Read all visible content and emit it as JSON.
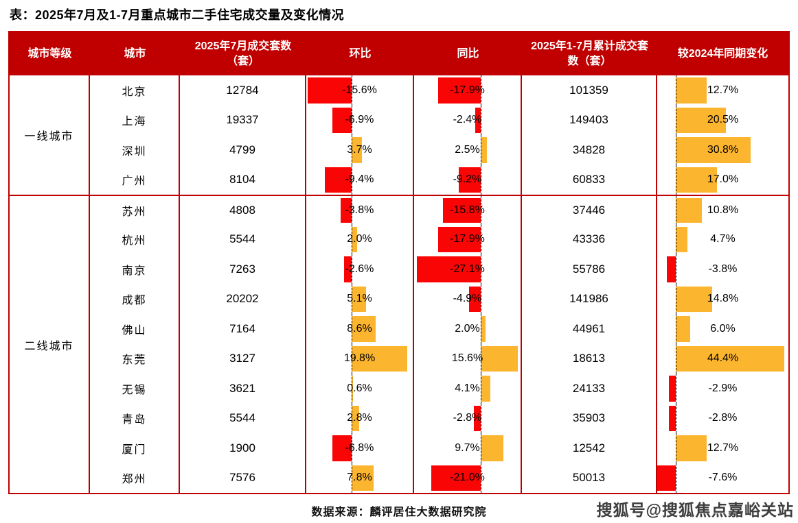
{
  "title": "表：2025年7月及1-7月重点城市二手住宅成交量及变化情况",
  "source": "数据来源：麟评居住大数据研究院",
  "watermark": "搜狐号@搜狐焦点嘉峪关站",
  "colors": {
    "header_bg": "#C00000",
    "table_border": "#C00000",
    "negative_bar": "#FA0505",
    "positive_bar": "#FCB52E",
    "header_text": "#FFFFFF",
    "body_text": "#000000"
  },
  "chart_data": {
    "type": "table",
    "title": "2025年7月及1-7月重点城市二手住宅成交量及变化情况",
    "columns": [
      "城市等级",
      "城市",
      "2025年7月成交套数（套）",
      "环比",
      "同比",
      "2025年1-7月累计成交套数（套）",
      "较2024年同期变化"
    ],
    "bar_columns": [
      "环比",
      "同比",
      "较2024年同期变化"
    ],
    "groups": [
      {
        "tier": "一线城市",
        "rows": [
          {
            "city": "北京",
            "jul": "12784",
            "mom": "-15.6%",
            "yoy": "-17.9%",
            "cum": "101359",
            "vs": "12.7%"
          },
          {
            "city": "上海",
            "jul": "19337",
            "mom": "-6.9%",
            "yoy": "-2.4%",
            "cum": "149403",
            "vs": "20.5%"
          },
          {
            "city": "深圳",
            "jul": "4799",
            "mom": "3.7%",
            "yoy": "2.5%",
            "cum": "34828",
            "vs": "30.8%"
          },
          {
            "city": "广州",
            "jul": "8104",
            "mom": "-9.4%",
            "yoy": "-9.2%",
            "cum": "60833",
            "vs": "17.0%"
          }
        ]
      },
      {
        "tier": "二线城市",
        "rows": [
          {
            "city": "苏州",
            "jul": "4808",
            "mom": "-3.8%",
            "yoy": "-15.8%",
            "cum": "37446",
            "vs": "10.8%"
          },
          {
            "city": "杭州",
            "jul": "5544",
            "mom": "2.0%",
            "yoy": "-17.9%",
            "cum": "43336",
            "vs": "4.7%"
          },
          {
            "city": "南京",
            "jul": "7263",
            "mom": "-2.6%",
            "yoy": "-27.1%",
            "cum": "55786",
            "vs": "-3.8%"
          },
          {
            "city": "成都",
            "jul": "20202",
            "mom": "5.1%",
            "yoy": "-4.9%",
            "cum": "141986",
            "vs": "14.8%"
          },
          {
            "city": "佛山",
            "jul": "7164",
            "mom": "8.6%",
            "yoy": "2.0%",
            "cum": "44961",
            "vs": "6.0%"
          },
          {
            "city": "东莞",
            "jul": "3127",
            "mom": "19.8%",
            "yoy": "15.6%",
            "cum": "18613",
            "vs": "44.4%"
          },
          {
            "city": "无锡",
            "jul": "3621",
            "mom": "0.6%",
            "yoy": "4.1%",
            "cum": "24133",
            "vs": "-2.9%"
          },
          {
            "city": "青岛",
            "jul": "5544",
            "mom": "2.8%",
            "yoy": "-2.8%",
            "cum": "35903",
            "vs": "-2.8%"
          },
          {
            "city": "厦门",
            "jul": "1900",
            "mom": "-6.8%",
            "yoy": "9.7%",
            "cum": "12542",
            "vs": "12.7%"
          },
          {
            "city": "郑州",
            "jul": "7576",
            "mom": "7.8%",
            "yoy": "-21.0%",
            "cum": "50013",
            "vs": "-7.6%"
          }
        ]
      }
    ]
  }
}
